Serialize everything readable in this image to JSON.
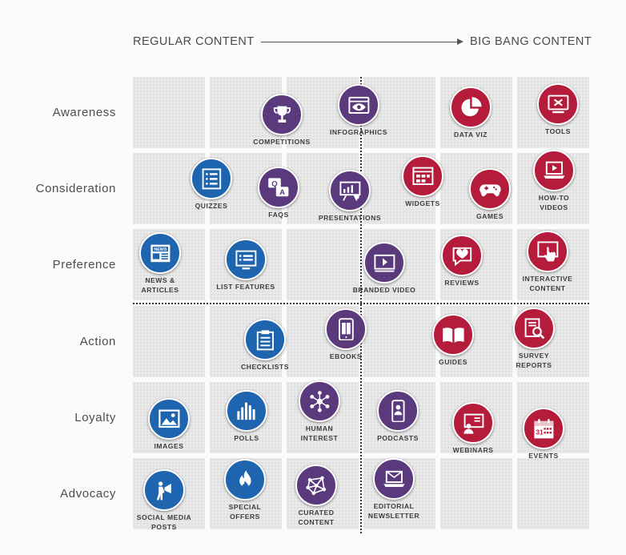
{
  "header": {
    "left": "REGULAR CONTENT",
    "right": "BIG BANG CONTENT"
  },
  "rows": [
    "Awareness",
    "Consideration",
    "Preference",
    "Action",
    "Loyalty",
    "Advocacy"
  ],
  "colors": {
    "blue": "#1e64ae",
    "purple": "#5a3a7d",
    "red": "#b51c3c"
  },
  "items": [
    {
      "id": "competitions",
      "label": [
        "COMPETITIONS"
      ],
      "icon": "trophy-icon",
      "color": "purple"
    },
    {
      "id": "infographics",
      "label": [
        "INFOGRAPHICS"
      ],
      "icon": "eye-browser-icon",
      "color": "purple"
    },
    {
      "id": "data-viz",
      "label": [
        "DATA VIZ"
      ],
      "icon": "pie-chart-icon",
      "color": "red"
    },
    {
      "id": "tools",
      "label": [
        "TOOLS"
      ],
      "icon": "tools-icon",
      "color": "red"
    },
    {
      "id": "quizzes",
      "label": [
        "QUIZZES"
      ],
      "icon": "checklist-icon",
      "color": "blue"
    },
    {
      "id": "faqs",
      "label": [
        "FAQS"
      ],
      "icon": "qa-icon",
      "color": "purple"
    },
    {
      "id": "presentations",
      "label": [
        "PRESENTATIONS"
      ],
      "icon": "presentation-icon",
      "color": "purple"
    },
    {
      "id": "widgets",
      "label": [
        "WIDGETS"
      ],
      "icon": "widget-icon",
      "color": "red"
    },
    {
      "id": "games",
      "label": [
        "GAMES"
      ],
      "icon": "gamepad-icon",
      "color": "red"
    },
    {
      "id": "how-to-videos",
      "label": [
        "HOW-TO",
        "VIDEOS"
      ],
      "icon": "laptop-video-icon",
      "color": "red"
    },
    {
      "id": "news-articles",
      "label": [
        "NEWS &",
        "ARTICLES"
      ],
      "icon": "newspaper-icon",
      "color": "blue"
    },
    {
      "id": "list-features",
      "label": [
        "LIST FEATURES"
      ],
      "icon": "list-window-icon",
      "color": "blue"
    },
    {
      "id": "branded-video",
      "label": [
        "BRANDED VIDEO"
      ],
      "icon": "video-player-icon",
      "color": "purple"
    },
    {
      "id": "reviews",
      "label": [
        "REVIEWS"
      ],
      "icon": "heart-bubble-icon",
      "color": "red"
    },
    {
      "id": "interactive-content",
      "label": [
        "INTERACTIVE",
        "CONTENT"
      ],
      "icon": "touch-screen-icon",
      "color": "red"
    },
    {
      "id": "checklists",
      "label": [
        "CHECKLISTS"
      ],
      "icon": "clipboard-icon",
      "color": "blue"
    },
    {
      "id": "ebooks",
      "label": [
        "EBOOKS"
      ],
      "icon": "tablet-book-icon",
      "color": "purple"
    },
    {
      "id": "guides",
      "label": [
        "GUIDES"
      ],
      "icon": "open-book-icon",
      "color": "red"
    },
    {
      "id": "survey-reports",
      "label": [
        "SURVEY",
        "REPORTS"
      ],
      "icon": "report-magnifier-icon",
      "color": "red"
    },
    {
      "id": "images",
      "label": [
        "IMAGES"
      ],
      "icon": "image-icon",
      "color": "blue"
    },
    {
      "id": "polls",
      "label": [
        "POLLS"
      ],
      "icon": "bar-chart-icon",
      "color": "blue"
    },
    {
      "id": "human-interest",
      "label": [
        "HUMAN",
        "INTEREST"
      ],
      "icon": "people-network-icon",
      "color": "purple"
    },
    {
      "id": "podcasts",
      "label": [
        "PODCASTS"
      ],
      "icon": "phone-person-icon",
      "color": "purple"
    },
    {
      "id": "webinars",
      "label": [
        "WEBINARS"
      ],
      "icon": "webinar-icon",
      "color": "red"
    },
    {
      "id": "events",
      "label": [
        "EVENTS"
      ],
      "icon": "calendar-icon",
      "color": "red"
    },
    {
      "id": "social-media-posts",
      "label": [
        "SOCIAL MEDIA",
        "POSTS"
      ],
      "icon": "megaphone-icon",
      "color": "blue"
    },
    {
      "id": "special-offers",
      "label": [
        "SPECIAL",
        "OFFERS"
      ],
      "icon": "flame-icon",
      "color": "blue"
    },
    {
      "id": "curated-content",
      "label": [
        "CURATED",
        "CONTENT"
      ],
      "icon": "network-icon",
      "color": "purple"
    },
    {
      "id": "editorial-newsletter",
      "label": [
        "EDITORIAL",
        "NEWSLETTER"
      ],
      "icon": "envelope-laptop-icon",
      "color": "purple"
    }
  ]
}
